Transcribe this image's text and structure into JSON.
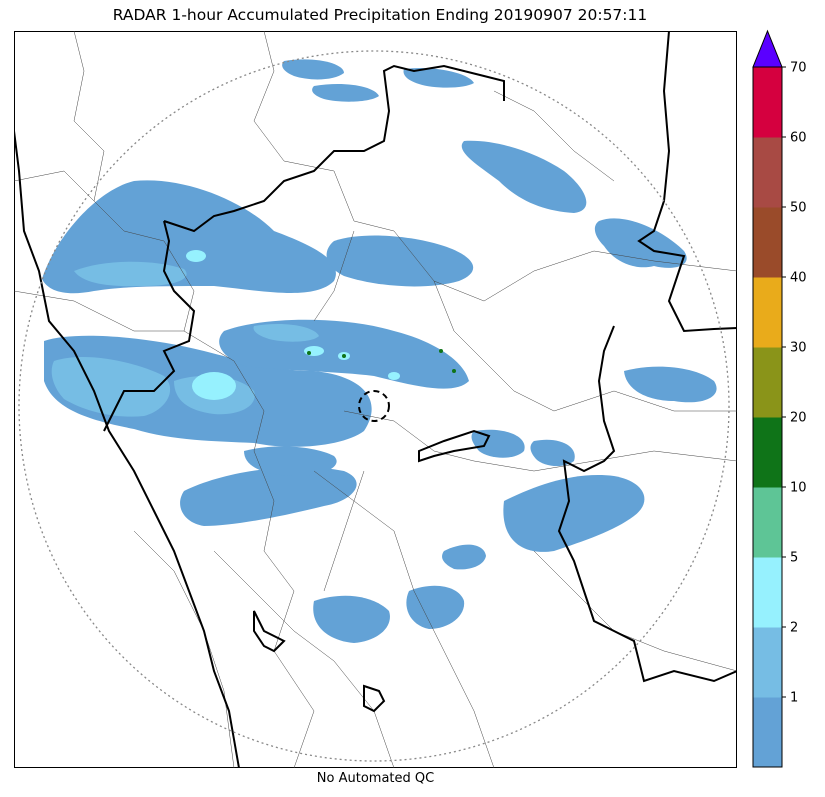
{
  "title": "RADAR 1-hour Accumulated Precipitation Ending 20190907 20:57:11",
  "footer_note": "No Automated QC",
  "colorbar": {
    "levels": [
      {
        "label": "",
        "color": "#63a2d6"
      },
      {
        "label": "1",
        "color": "#76bde4"
      },
      {
        "label": "2",
        "color": "#96f1fe"
      },
      {
        "label": "5",
        "color": "#5ec596"
      },
      {
        "label": "10",
        "color": "#0f7418"
      },
      {
        "label": "20",
        "color": "#8a9419"
      },
      {
        "label": "30",
        "color": "#e9ab1b"
      },
      {
        "label": "40",
        "color": "#9a4b2a"
      },
      {
        "label": "50",
        "color": "#a84a44"
      },
      {
        "label": "60",
        "color": "#d5003f"
      },
      {
        "label": "70",
        "color": "#d5003f"
      }
    ],
    "extend_color": "#5a00ff"
  },
  "colors": {
    "light_rain": "#63a2d6",
    "moderate_rain": "#76bde4",
    "heavy_rain": "#96f1fe",
    "border": "#000000",
    "range_ring": "#888888"
  }
}
